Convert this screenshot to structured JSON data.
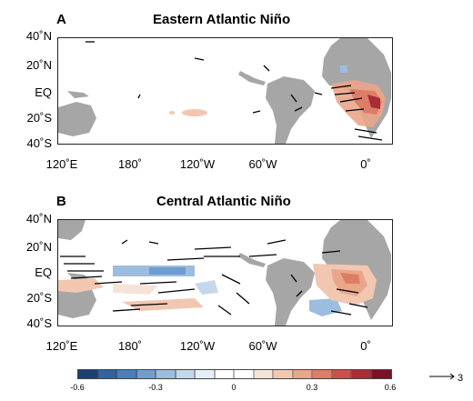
{
  "panels": [
    {
      "letter": "A",
      "title": "Eastern Atlantic Niño"
    },
    {
      "letter": "B",
      "title": "Central Atlantic Niño"
    }
  ],
  "y_labels": [
    "40˚N",
    "20˚N",
    "EQ",
    "20˚S",
    "40˚S"
  ],
  "x_labels": [
    "120˚E",
    "180˚",
    "120˚W",
    "60˚W",
    "0˚"
  ],
  "colorbar": {
    "ticks": [
      "-0.6",
      "-0.3",
      "0",
      "0.3",
      "0.6"
    ],
    "colors": [
      "#1d3f74",
      "#2f63a2",
      "#4a7fbe",
      "#6f9dd0",
      "#9dbde0",
      "#c4d8ec",
      "#e6eef6",
      "#ffffff",
      "#ffffff",
      "#f6e3d8",
      "#f2c7b1",
      "#eaa68a",
      "#dd7d66",
      "#c85248",
      "#a92d36",
      "#7a1225"
    ]
  },
  "reference_vector_label": "3",
  "colors": {
    "land": "#a6a6a6",
    "warm": "#e07a60",
    "cool": "#6a9fcf",
    "vector": "#000000"
  }
}
